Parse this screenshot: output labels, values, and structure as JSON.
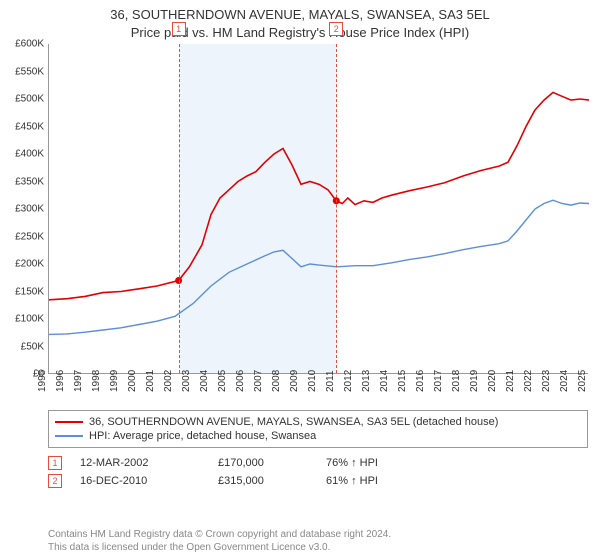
{
  "title_line1": "36, SOUTHERNDOWN AVENUE, MAYALS, SWANSEA, SA3 5EL",
  "title_line2": "Price paid vs. HM Land Registry's House Price Index (HPI)",
  "chart": {
    "type": "line",
    "background_color": "#ffffff",
    "band_color": "#eef4fb",
    "marker_border": "#e74c3c",
    "ylim": [
      0,
      600000
    ],
    "ytick_step": 50000,
    "yticks_fmt": [
      "£0",
      "£50K",
      "£100K",
      "£150K",
      "£200K",
      "£250K",
      "£300K",
      "£350K",
      "£400K",
      "£450K",
      "£500K",
      "£550K",
      "£600K"
    ],
    "xlim": [
      1995,
      2025
    ],
    "xticks": [
      1995,
      1996,
      1997,
      1998,
      1999,
      2000,
      2001,
      2002,
      2003,
      2004,
      2005,
      2006,
      2007,
      2008,
      2009,
      2010,
      2011,
      2012,
      2013,
      2014,
      2015,
      2016,
      2017,
      2018,
      2019,
      2020,
      2021,
      2022,
      2023,
      2024,
      2025
    ],
    "series": [
      {
        "name": "36, SOUTHERNDOWN AVENUE, MAYALS, SWANSEA, SA3 5EL (detached house)",
        "color": "#e20000",
        "width": 1.6,
        "data": [
          [
            1995,
            135000
          ],
          [
            1996,
            137000
          ],
          [
            1997,
            141000
          ],
          [
            1998,
            148000
          ],
          [
            1999,
            150000
          ],
          [
            2000,
            155000
          ],
          [
            2001,
            160000
          ],
          [
            2002.2,
            170000
          ],
          [
            2002.8,
            195000
          ],
          [
            2003.5,
            235000
          ],
          [
            2004,
            290000
          ],
          [
            2004.5,
            320000
          ],
          [
            2005,
            335000
          ],
          [
            2005.5,
            350000
          ],
          [
            2006,
            360000
          ],
          [
            2006.5,
            368000
          ],
          [
            2007,
            385000
          ],
          [
            2007.5,
            400000
          ],
          [
            2008,
            410000
          ],
          [
            2008.5,
            380000
          ],
          [
            2009,
            345000
          ],
          [
            2009.5,
            350000
          ],
          [
            2010,
            345000
          ],
          [
            2010.5,
            335000
          ],
          [
            2010.96,
            315000
          ],
          [
            2011.3,
            310000
          ],
          [
            2011.6,
            320000
          ],
          [
            2012,
            308000
          ],
          [
            2012.5,
            315000
          ],
          [
            2013,
            312000
          ],
          [
            2013.5,
            320000
          ],
          [
            2014,
            325000
          ],
          [
            2015,
            333000
          ],
          [
            2016,
            340000
          ],
          [
            2017,
            348000
          ],
          [
            2018,
            360000
          ],
          [
            2019,
            370000
          ],
          [
            2020,
            378000
          ],
          [
            2020.5,
            385000
          ],
          [
            2021,
            415000
          ],
          [
            2021.5,
            450000
          ],
          [
            2022,
            480000
          ],
          [
            2022.5,
            498000
          ],
          [
            2023,
            512000
          ],
          [
            2023.5,
            505000
          ],
          [
            2024,
            498000
          ],
          [
            2024.5,
            500000
          ],
          [
            2025,
            498000
          ]
        ]
      },
      {
        "name": "HPI: Average price, detached house, Swansea",
        "color": "#5b8fd6",
        "width": 1.4,
        "data": [
          [
            1995,
            72000
          ],
          [
            1996,
            73000
          ],
          [
            1997,
            76000
          ],
          [
            1998,
            80000
          ],
          [
            1999,
            84000
          ],
          [
            2000,
            90000
          ],
          [
            2001,
            96000
          ],
          [
            2002,
            105000
          ],
          [
            2003,
            128000
          ],
          [
            2004,
            160000
          ],
          [
            2005,
            185000
          ],
          [
            2006,
            200000
          ],
          [
            2007,
            215000
          ],
          [
            2007.5,
            222000
          ],
          [
            2008,
            225000
          ],
          [
            2008.5,
            210000
          ],
          [
            2009,
            195000
          ],
          [
            2009.5,
            200000
          ],
          [
            2010,
            198000
          ],
          [
            2011,
            195000
          ],
          [
            2012,
            197000
          ],
          [
            2013,
            197000
          ],
          [
            2014,
            202000
          ],
          [
            2015,
            208000
          ],
          [
            2016,
            213000
          ],
          [
            2017,
            219000
          ],
          [
            2018,
            226000
          ],
          [
            2019,
            232000
          ],
          [
            2020,
            237000
          ],
          [
            2020.5,
            242000
          ],
          [
            2021,
            260000
          ],
          [
            2021.5,
            280000
          ],
          [
            2022,
            300000
          ],
          [
            2022.5,
            310000
          ],
          [
            2023,
            316000
          ],
          [
            2023.5,
            310000
          ],
          [
            2024,
            307000
          ],
          [
            2024.5,
            311000
          ],
          [
            2025,
            310000
          ]
        ]
      }
    ],
    "transactions": [
      {
        "idx": "1",
        "year": 2002.2,
        "price": 170000,
        "date": "12-MAR-2002",
        "price_fmt": "£170,000",
        "pct": "76% ↑ HPI"
      },
      {
        "idx": "2",
        "year": 2010.96,
        "price": 315000,
        "date": "16-DEC-2010",
        "price_fmt": "£315,000",
        "pct": "61% ↑ HPI"
      }
    ],
    "band": {
      "from": 2002.2,
      "to": 2010.96
    }
  },
  "footer_line1": "Contains HM Land Registry data © Crown copyright and database right 2024.",
  "footer_line2": "This data is licensed under the Open Government Licence v3.0."
}
